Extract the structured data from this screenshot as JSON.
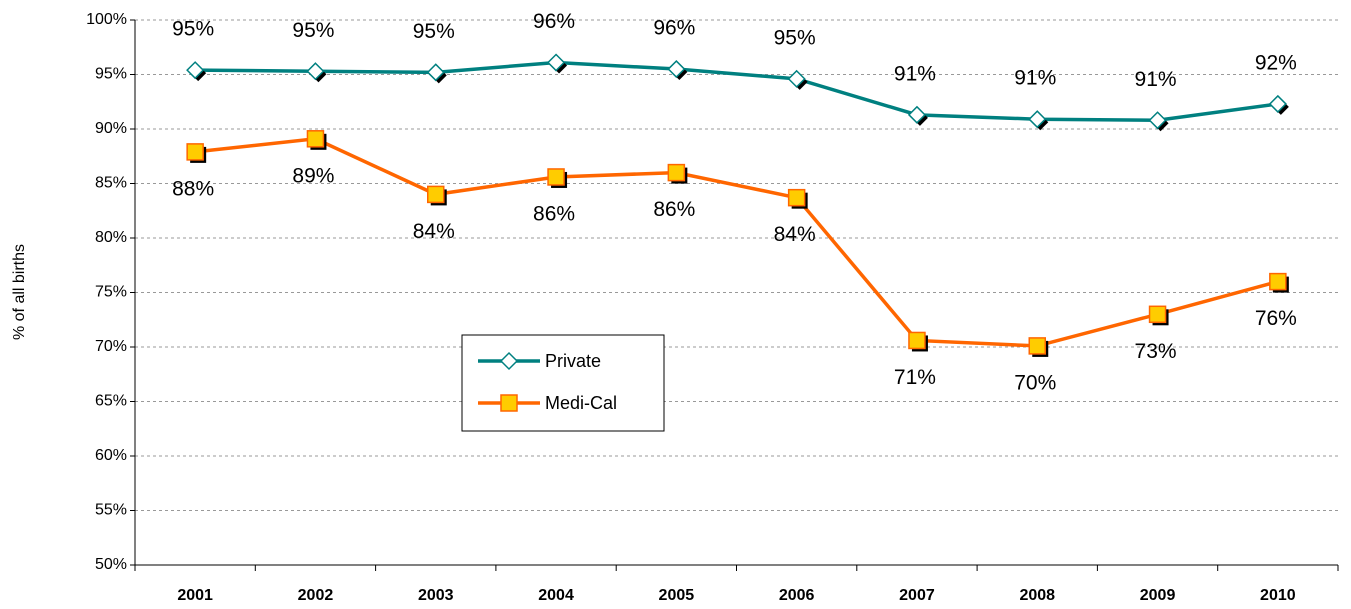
{
  "chart_data": {
    "type": "line",
    "y_label": "% of all births",
    "categories": [
      "2001",
      "2002",
      "2003",
      "2004",
      "2005",
      "2006",
      "2007",
      "2008",
      "2009",
      "2010"
    ],
    "series": [
      {
        "name": "Private",
        "color": "#008080",
        "marker_fill": "#ffffff",
        "marker": "diamond",
        "values": [
          95.4,
          95.3,
          95.2,
          96.1,
          95.5,
          94.6,
          91.3,
          90.9,
          90.8,
          92.3
        ],
        "value_labels": [
          "95%",
          "95%",
          "95%",
          "96%",
          "96%",
          "95%",
          "91%",
          "91%",
          "91%",
          "92%"
        ]
      },
      {
        "name": "Medi-Cal",
        "color": "#ff6600",
        "marker_fill": "#ffcc00",
        "marker": "square",
        "values": [
          87.9,
          89.1,
          84.0,
          85.6,
          86.0,
          83.7,
          70.6,
          70.1,
          73.0,
          76.0
        ],
        "value_labels": [
          "88%",
          "89%",
          "84%",
          "86%",
          "86%",
          "84%",
          "71%",
          "70%",
          "73%",
          "76%"
        ]
      }
    ],
    "ylim": [
      50,
      100
    ],
    "yticks": [
      {
        "value": 50,
        "label": "50%"
      },
      {
        "value": 55,
        "label": "55%"
      },
      {
        "value": 60,
        "label": "60%"
      },
      {
        "value": 65,
        "label": "65%"
      },
      {
        "value": 70,
        "label": "70%"
      },
      {
        "value": 75,
        "label": "75%"
      },
      {
        "value": 80,
        "label": "80%"
      },
      {
        "value": 85,
        "label": "85%"
      },
      {
        "value": 90,
        "label": "90%"
      },
      {
        "value": 95,
        "label": "95%"
      },
      {
        "value": 100,
        "label": "100%"
      }
    ],
    "grid": true
  }
}
